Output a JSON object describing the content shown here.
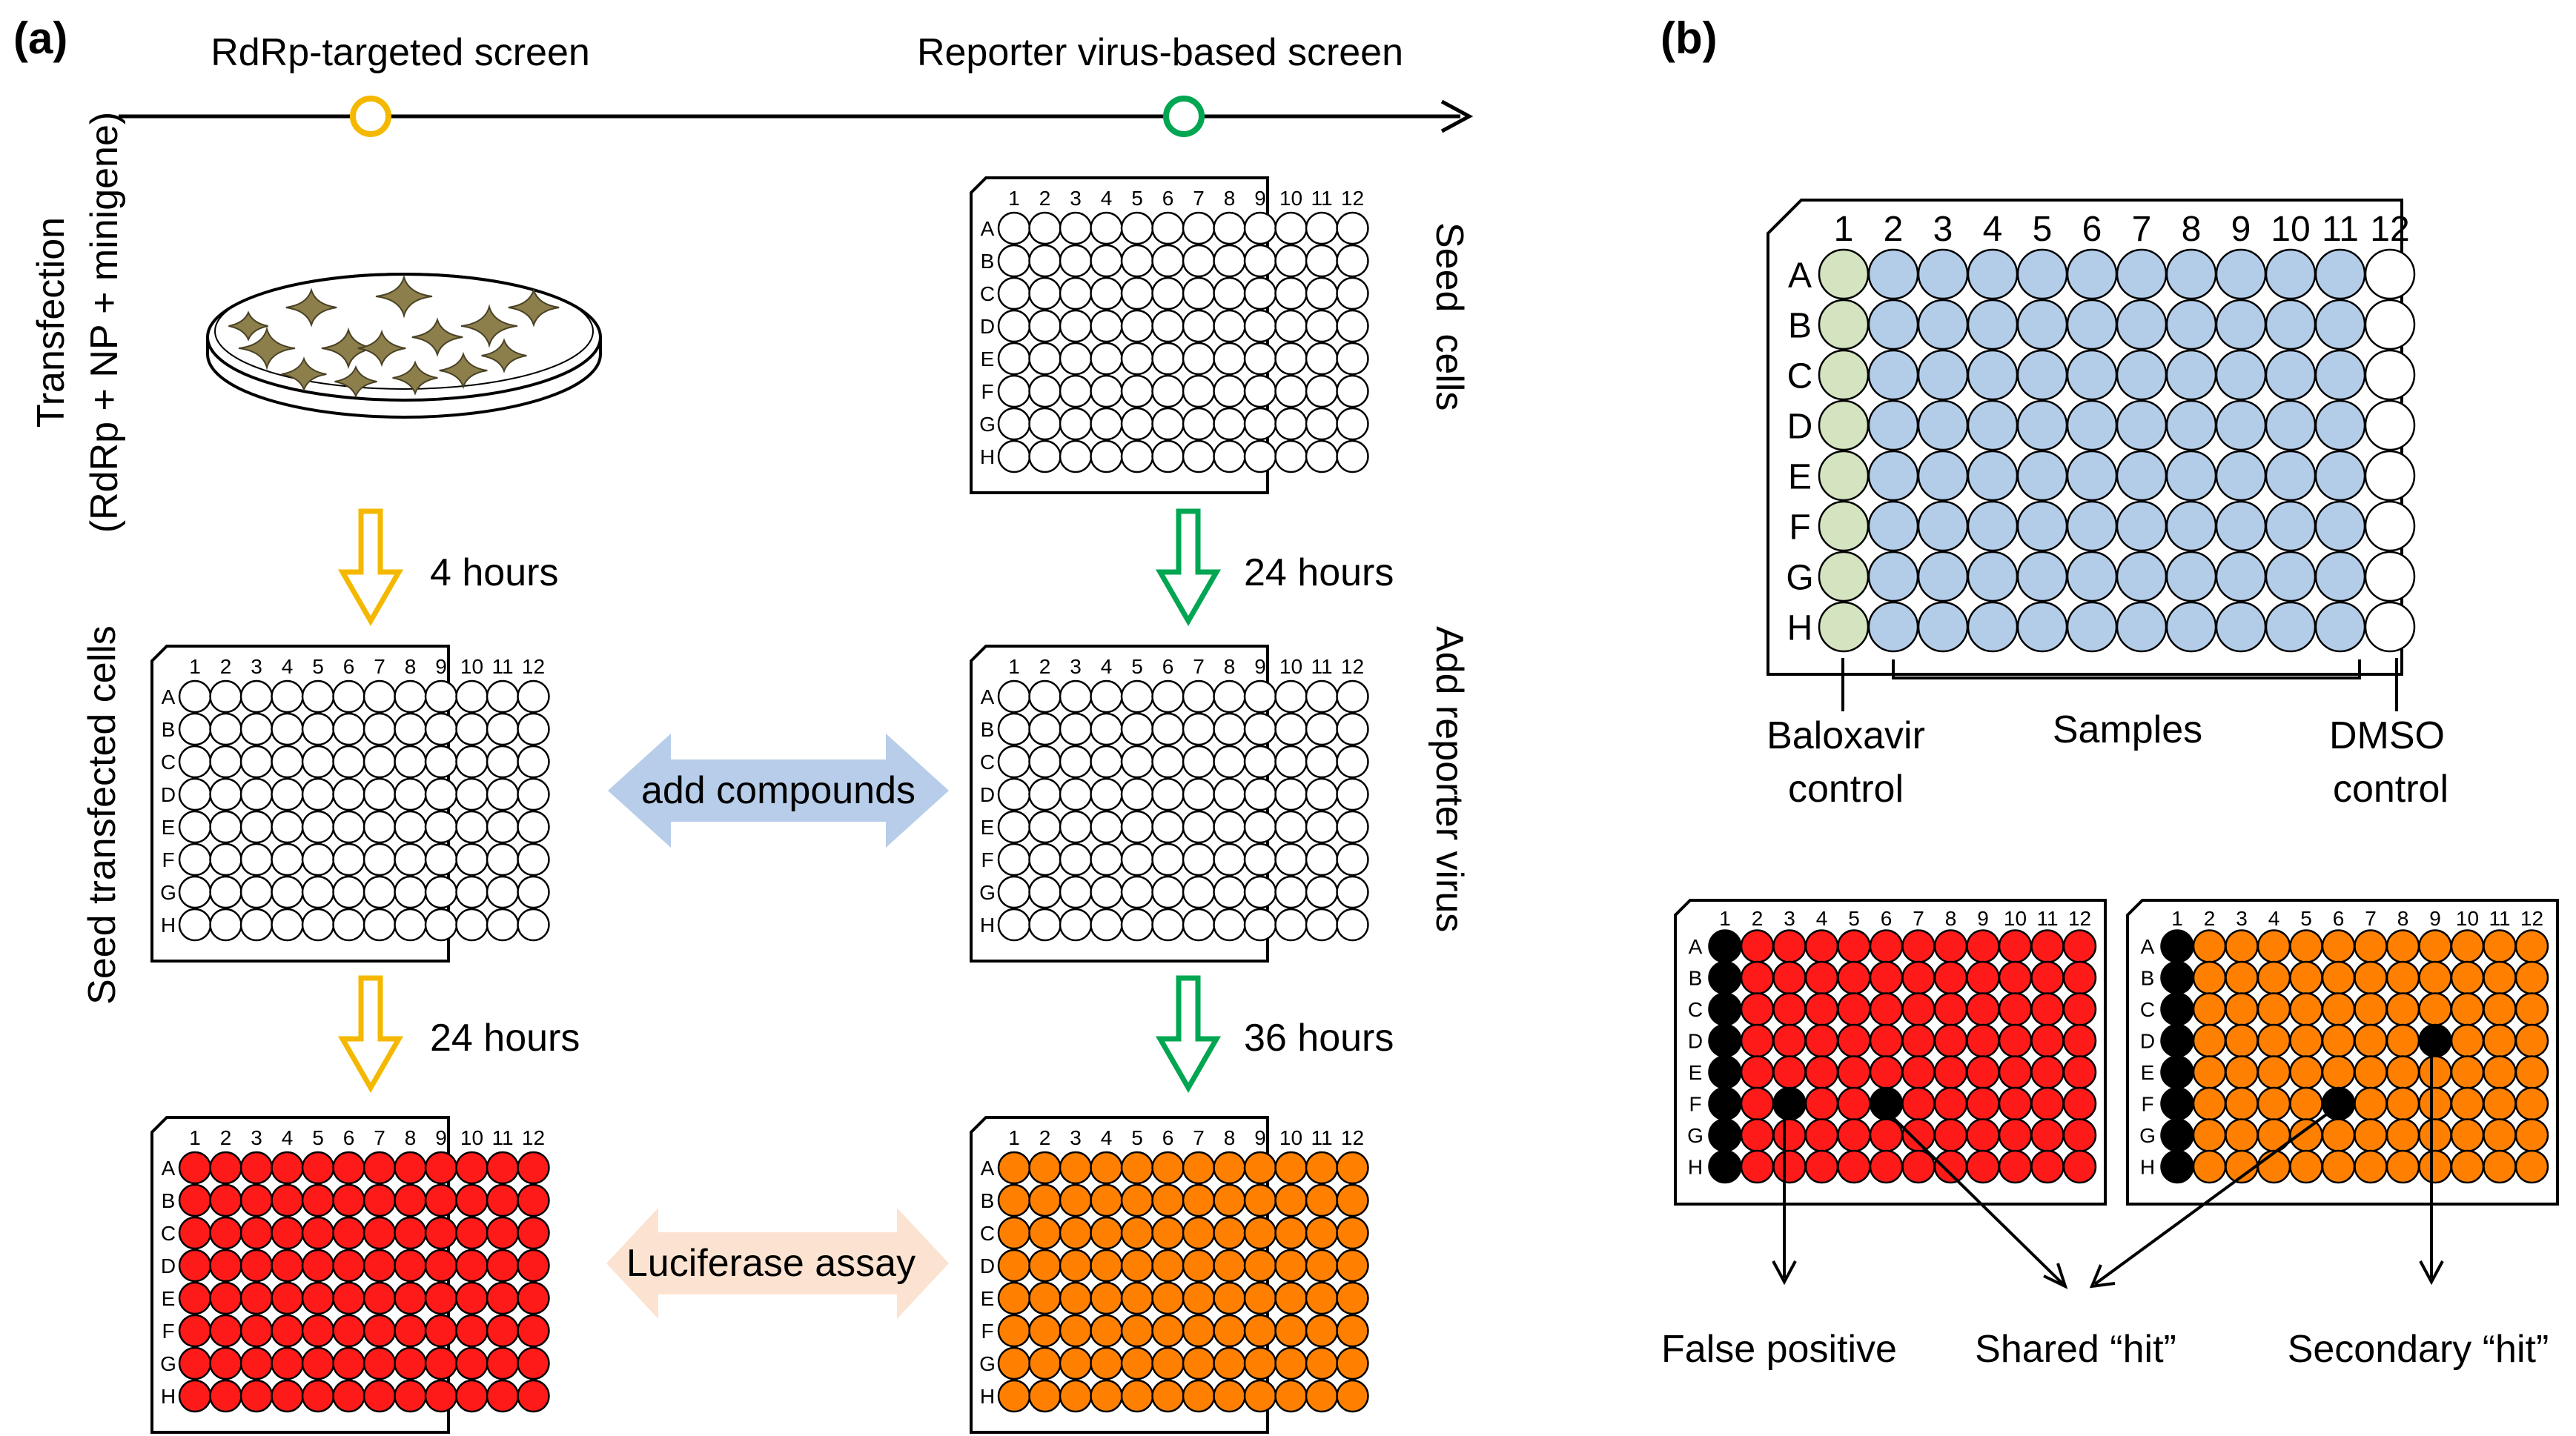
{
  "panel_a": {
    "label": "(a)",
    "timeline": {
      "left_title": "RdRp-targeted screen",
      "right_title": "Reporter virus-based screen"
    },
    "steps": {
      "transfection_line1": "Transfection",
      "transfection_line2": "(RdRp + NP + minigene)",
      "seed_cells": "Seed  cells",
      "seed_transfected": "Seed transfected cells",
      "add_reporter": "Add reporter virus",
      "time_4h": "4 hours",
      "time_24h_left": "24 hours",
      "time_24h_right": "24 hours",
      "time_36h": "36 hours",
      "add_compounds": "add compounds",
      "luciferase": "Luciferase assay"
    }
  },
  "panel_b": {
    "label": "(b)",
    "baloxavir_line1": "Baloxavir",
    "baloxavir_line2": "control",
    "samples": "Samples",
    "dmso_line1": "DMSO",
    "dmso_line2": "control",
    "false_positive": "False positive",
    "shared_hit": "Shared “hit”",
    "secondary_hit": "Secondary “hit”"
  },
  "plate": {
    "columns": [
      "1",
      "2",
      "3",
      "4",
      "5",
      "6",
      "7",
      "8",
      "9",
      "10",
      "11",
      "12"
    ],
    "rows": [
      "A",
      "B",
      "C",
      "D",
      "E",
      "F",
      "G",
      "H"
    ]
  },
  "colors": {
    "yellow": "#f5b800",
    "green": "#00a651",
    "olive_cell": "#8c7f4b",
    "blue_arrow": "#b7cde9",
    "peach_arrow": "#fce3d1",
    "red_well": "#ff1a1a",
    "orange_well": "#ff8000",
    "blue_well": "#b3cde9",
    "green_well": "#d4e3c0",
    "black_well": "#000000"
  }
}
